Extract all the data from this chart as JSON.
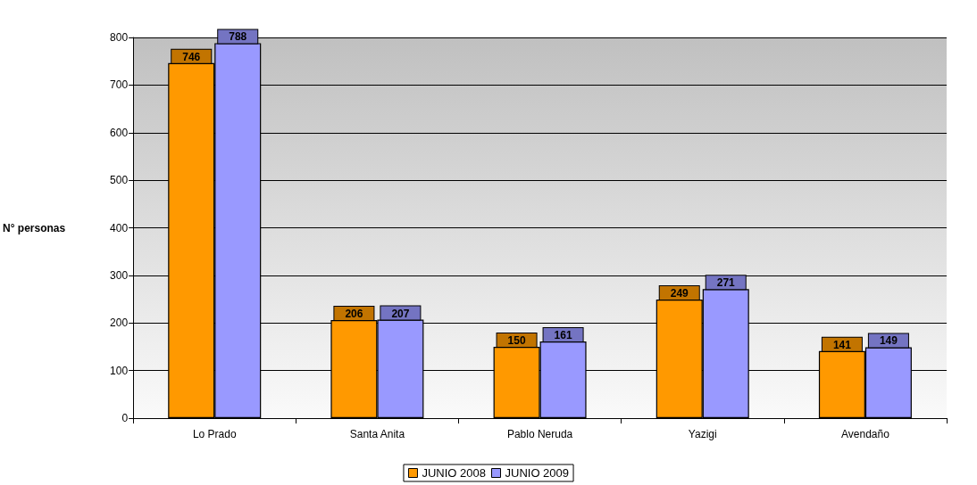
{
  "chart_data": {
    "type": "bar",
    "categories": [
      "Lo Prado",
      "Santa Anita",
      "Pablo Neruda",
      "Yazigi",
      "Avendaño"
    ],
    "series": [
      {
        "name": "JUNIO 2008",
        "color": "#ff9900",
        "values": [
          746,
          206,
          150,
          249,
          141
        ]
      },
      {
        "name": "JUNIO 2009",
        "color": "#9999ff",
        "values": [
          788,
          207,
          161,
          271,
          149
        ]
      }
    ],
    "ylabel": "N° personas",
    "ylim": [
      0,
      800
    ],
    "yticks": [
      0,
      100,
      200,
      300,
      400,
      500,
      600,
      700,
      800
    ],
    "grid": "y",
    "legend": "bottom",
    "data_labels": true
  }
}
